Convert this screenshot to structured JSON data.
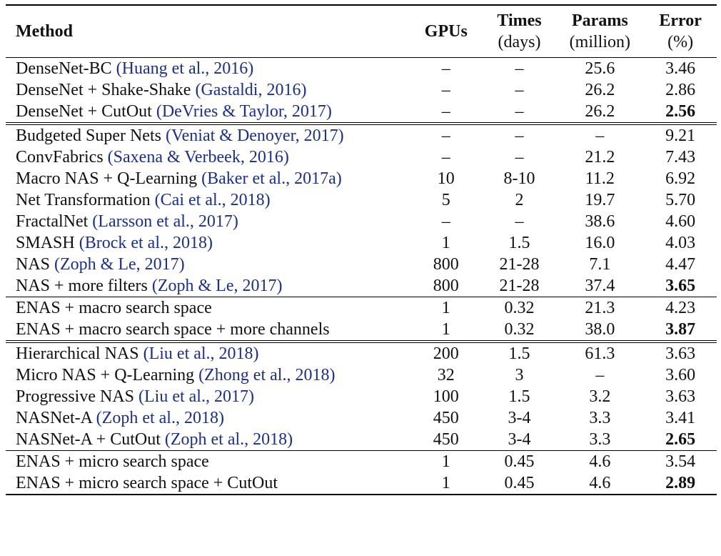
{
  "header": {
    "method": "Method",
    "gpus": "GPUs",
    "times": "Times",
    "times_unit": "(days)",
    "params": "Params",
    "params_unit": "(million)",
    "error": "Error",
    "error_unit": "(%)"
  },
  "groups": [
    {
      "rows": [
        {
          "name": "DenseNet-BC ",
          "cite": "(Huang et al., 2016)",
          "gpus": "–",
          "times": "–",
          "params": "25.6",
          "error": "3.46",
          "best": false
        },
        {
          "name": "DenseNet + Shake-Shake ",
          "cite": "(Gastaldi, 2016)",
          "gpus": "–",
          "times": "–",
          "params": "26.2",
          "error": "2.86",
          "best": false
        },
        {
          "name": "DenseNet + CutOut ",
          "cite": "(DeVries & Taylor, 2017)",
          "gpus": "–",
          "times": "–",
          "params": "26.2",
          "error": "2.56",
          "best": true
        }
      ]
    },
    {
      "rows": [
        {
          "name": "Budgeted Super Nets ",
          "cite": "(Veniat & Denoyer, 2017)",
          "gpus": "–",
          "times": "–",
          "params": "–",
          "error": "9.21",
          "best": false
        },
        {
          "name": "ConvFabrics ",
          "cite": "(Saxena & Verbeek, 2016)",
          "gpus": "–",
          "times": "–",
          "params": "21.2",
          "error": "7.43",
          "best": false
        },
        {
          "name": "Macro NAS + Q-Learning ",
          "cite": "(Baker et al., 2017a)",
          "gpus": "10",
          "times": "8-10",
          "params": "11.2",
          "error": "6.92",
          "best": false
        },
        {
          "name": "Net Transformation ",
          "cite": "(Cai et al., 2018)",
          "gpus": "5",
          "times": "2",
          "params": "19.7",
          "error": "5.70",
          "best": false
        },
        {
          "name": "FractalNet ",
          "cite": "(Larsson et al., 2017)",
          "gpus": "–",
          "times": "–",
          "params": "38.6",
          "error": "4.60",
          "best": false
        },
        {
          "name": "SMASH ",
          "cite": "(Brock et al., 2018)",
          "gpus": "1",
          "times": "1.5",
          "params": "16.0",
          "error": "4.03",
          "best": false
        },
        {
          "name": "NAS ",
          "cite": "(Zoph & Le, 2017)",
          "gpus": "800",
          "times": "21-28",
          "params": "7.1",
          "error": "4.47",
          "best": false
        },
        {
          "name": "NAS + more filters ",
          "cite": "(Zoph & Le, 2017)",
          "gpus": "800",
          "times": "21-28",
          "params": "37.4",
          "error": "3.65",
          "best": true
        }
      ]
    },
    {
      "rows": [
        {
          "name": "ENAS + macro search space",
          "cite": "",
          "gpus": "1",
          "times": "0.32",
          "params": "21.3",
          "error": "4.23",
          "best": false
        },
        {
          "name": "ENAS + macro search space + more channels",
          "cite": "",
          "gpus": "1",
          "times": "0.32",
          "params": "38.0",
          "error": "3.87",
          "best": true
        }
      ]
    },
    {
      "rows": [
        {
          "name": "Hierarchical NAS ",
          "cite": "(Liu et al., 2018)",
          "gpus": "200",
          "times": "1.5",
          "params": "61.3",
          "error": "3.63",
          "best": false
        },
        {
          "name": "Micro NAS + Q-Learning ",
          "cite": "(Zhong et al., 2018)",
          "gpus": "32",
          "times": "3",
          "params": "–",
          "error": "3.60",
          "best": false
        },
        {
          "name": "Progressive NAS ",
          "cite": "(Liu et al., 2017)",
          "gpus": "100",
          "times": "1.5",
          "params": "3.2",
          "error": "3.63",
          "best": false
        },
        {
          "name": "NASNet-A ",
          "cite": "(Zoph et al., 2018)",
          "gpus": "450",
          "times": "3-4",
          "params": "3.3",
          "error": "3.41",
          "best": false
        },
        {
          "name": "NASNet-A + CutOut ",
          "cite": "(Zoph et al., 2018)",
          "gpus": "450",
          "times": "3-4",
          "params": "3.3",
          "error": "2.65",
          "best": true
        }
      ]
    },
    {
      "rows": [
        {
          "name": "ENAS + micro search space",
          "cite": "",
          "gpus": "1",
          "times": "0.45",
          "params": "4.6",
          "error": "3.54",
          "best": false
        },
        {
          "name": "ENAS + micro search space + CutOut",
          "cite": "",
          "gpus": "1",
          "times": "0.45",
          "params": "4.6",
          "error": "2.89",
          "best": true
        }
      ]
    }
  ],
  "separators": [
    "double",
    "single",
    "double",
    "single"
  ],
  "colors": {
    "citation": "#1a2f8f",
    "text": "#111111",
    "rule": "#000000"
  }
}
